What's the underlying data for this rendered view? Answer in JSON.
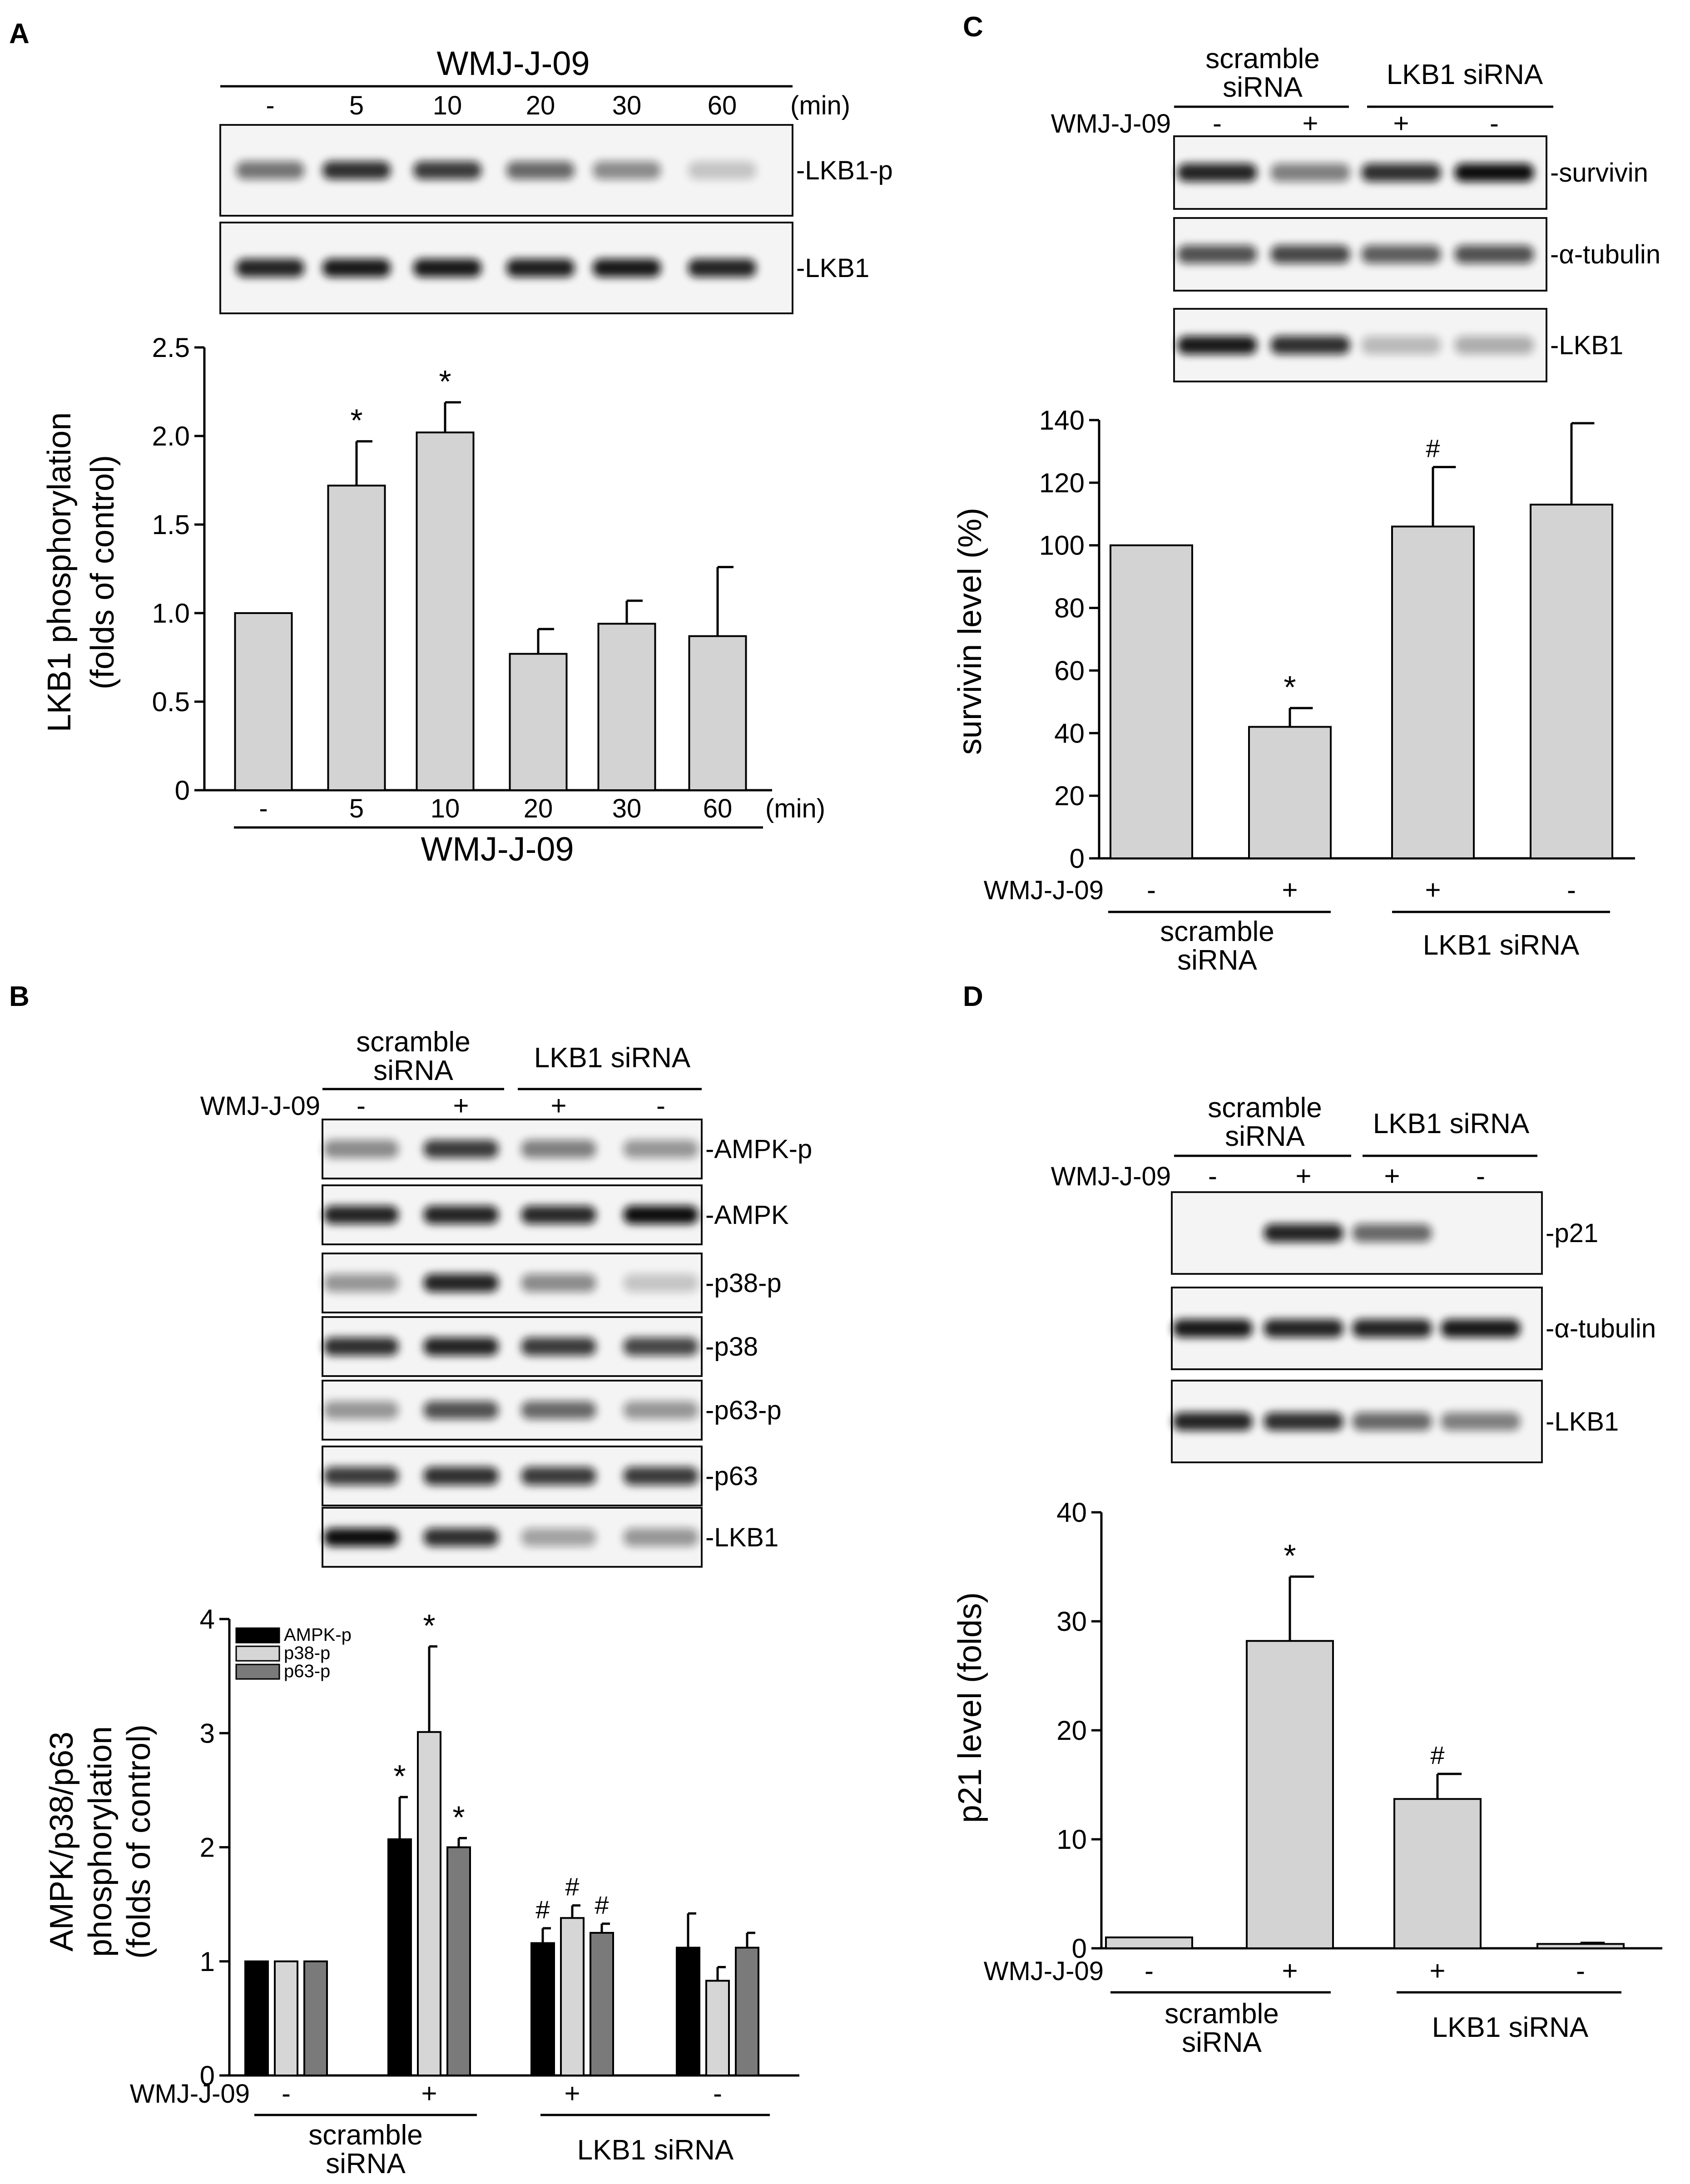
{
  "colors": {
    "bar_gray": "#d3d3d3",
    "black": "#000000",
    "light": "#d6d6d6",
    "dark": "#7a7a7a"
  },
  "panels": {
    "A": {
      "letter": "A",
      "blot": {
        "header": "WMJ-J-09",
        "lanes": [
          "-",
          "5",
          "10",
          "20",
          "30",
          "60"
        ],
        "unit": "(min)",
        "rows": [
          "LKB1-p",
          "LKB1"
        ]
      },
      "chart": {
        "ylabel1": "LKB1 phosphorylation",
        "ylabel2": "(folds of control)",
        "xlabel": "WMJ-J-09",
        "unit": "(min)",
        "yticks": [
          "0",
          "0.5",
          "1.0",
          "1.5",
          "2.0",
          "2.5"
        ]
      }
    },
    "B": {
      "letter": "B",
      "blot": {
        "group1": "scramble siRNA",
        "group1a": "scramble",
        "group1b": "siRNA",
        "group2": "LKB1 siRNA",
        "treatment": "WMJ-J-09",
        "signs": [
          "-",
          "+",
          "+",
          "-"
        ],
        "rows": [
          "AMPK-p",
          "AMPK",
          "p38-p",
          "p38",
          "p63-p",
          "p63",
          "LKB1"
        ]
      },
      "chart": {
        "ylabel1": "AMPK/p38/p63",
        "ylabel2": "phosphorylation",
        "ylabel3": "(folds of control)",
        "treatment": "WMJ-J-09",
        "signs": [
          "-",
          "+",
          "+",
          "-"
        ],
        "group1a": "scramble",
        "group1b": "siRNA",
        "group2": "LKB1 siRNA",
        "yticks": [
          "0",
          "1",
          "2",
          "3",
          "4"
        ],
        "legend": [
          "AMPK-p",
          "p38-p",
          "p63-p"
        ]
      }
    },
    "C": {
      "letter": "C",
      "blot": {
        "group1a": "scramble",
        "group1b": "siRNA",
        "group2": "LKB1 siRNA",
        "treatment": "WMJ-J-09",
        "signs": [
          "-",
          "+",
          "+",
          "-"
        ],
        "rows": [
          "survivin",
          "α-tubulin",
          "LKB1"
        ]
      },
      "chart": {
        "ylabel": "survivin level (%)",
        "treatment": "WMJ-J-09",
        "signs": [
          "-",
          "+",
          "+",
          "-"
        ],
        "group1a": "scramble",
        "group1b": "siRNA",
        "group2": "LKB1 siRNA",
        "yticks": [
          "0",
          "20",
          "40",
          "60",
          "80",
          "100",
          "120",
          "140"
        ]
      }
    },
    "D": {
      "letter": "D",
      "blot": {
        "group1a": "scramble",
        "group1b": "siRNA",
        "group2": "LKB1 siRNA",
        "treatment": "WMJ-J-09",
        "signs": [
          "-",
          "+",
          "+",
          "-"
        ],
        "rows": [
          "p21",
          "α-tubulin",
          "LKB1"
        ]
      },
      "chart": {
        "ylabel": "p21 level (folds)",
        "treatment": "WMJ-J-09",
        "signs": [
          "-",
          "+",
          "+",
          "-"
        ],
        "group1a": "scramble",
        "group1b": "siRNA",
        "group2": "LKB1 siRNA",
        "yticks": [
          "0",
          "10",
          "20",
          "30",
          "40"
        ]
      }
    }
  },
  "chart_data": [
    {
      "panel": "A",
      "type": "bar",
      "categories": [
        "-",
        "5",
        "10",
        "20",
        "30",
        "60"
      ],
      "values": [
        1.0,
        1.72,
        2.02,
        0.77,
        0.94,
        0.87
      ],
      "errors": [
        0,
        0.25,
        0.17,
        0.14,
        0.13,
        0.39
      ],
      "sig": [
        "",
        "*",
        "*",
        "",
        "",
        ""
      ],
      "ylabel": "LKB1 phosphorylation (folds of control)",
      "xlabel": "WMJ-J-09",
      "ylim": [
        0,
        2.5
      ]
    },
    {
      "panel": "B",
      "type": "bar",
      "categories": [
        "-",
        "+",
        "+",
        "-"
      ],
      "series": [
        {
          "name": "AMPK-p",
          "values": [
            1.0,
            2.07,
            1.16,
            1.12
          ],
          "errors": [
            0,
            0.37,
            0.13,
            0.3
          ],
          "sig": [
            "",
            "*",
            "#",
            ""
          ]
        },
        {
          "name": "p38-p",
          "values": [
            1.0,
            3.01,
            1.38,
            0.83
          ],
          "errors": [
            0,
            0.75,
            0.11,
            0.12
          ],
          "sig": [
            "",
            "*",
            "#",
            ""
          ]
        },
        {
          "name": "p63-p",
          "values": [
            1.0,
            2.0,
            1.25,
            1.12
          ],
          "errors": [
            0,
            0.08,
            0.08,
            0.13
          ],
          "sig": [
            "",
            "*",
            "#",
            ""
          ]
        }
      ],
      "ylabel": "AMPK/p38/p63 phosphorylation (folds of control)",
      "ylim": [
        0,
        4
      ],
      "legend_position": "top-left"
    },
    {
      "panel": "C",
      "type": "bar",
      "categories": [
        "-",
        "+",
        "+",
        "-"
      ],
      "values": [
        100,
        42,
        106,
        113
      ],
      "errors": [
        0,
        6,
        19,
        26
      ],
      "sig": [
        "",
        "*",
        "#",
        ""
      ],
      "ylabel": "survivin level (%)",
      "ylim": [
        0,
        140
      ]
    },
    {
      "panel": "D",
      "type": "bar",
      "categories": [
        "-",
        "+",
        "+",
        "-"
      ],
      "values": [
        1.0,
        28.2,
        13.7,
        0.4
      ],
      "errors": [
        0,
        5.9,
        2.3,
        0.1
      ],
      "sig": [
        "",
        "*",
        "#",
        ""
      ],
      "ylabel": "p21 level (folds)",
      "ylim": [
        0,
        40
      ]
    }
  ],
  "blot_bands": {
    "A": [
      [
        0.55,
        0.85,
        0.8,
        0.6,
        0.45,
        0.2
      ],
      [
        0.9,
        0.95,
        0.95,
        0.92,
        0.95,
        0.9
      ]
    ],
    "B": [
      [
        0.45,
        0.8,
        0.5,
        0.4
      ],
      [
        0.9,
        0.9,
        0.88,
        1.0
      ],
      [
        0.4,
        0.9,
        0.45,
        0.2
      ],
      [
        0.85,
        0.9,
        0.8,
        0.75
      ],
      [
        0.4,
        0.7,
        0.6,
        0.4
      ],
      [
        0.8,
        0.85,
        0.8,
        0.8
      ],
      [
        1.0,
        0.85,
        0.35,
        0.4
      ]
    ],
    "C": [
      [
        0.9,
        0.5,
        0.85,
        1.0
      ],
      [
        0.7,
        0.75,
        0.65,
        0.7
      ],
      [
        0.95,
        0.85,
        0.25,
        0.3
      ]
    ],
    "D": [
      [
        0.0,
        0.9,
        0.6,
        0.0
      ],
      [
        0.95,
        0.9,
        0.9,
        0.95
      ],
      [
        0.9,
        0.85,
        0.6,
        0.5
      ]
    ]
  }
}
